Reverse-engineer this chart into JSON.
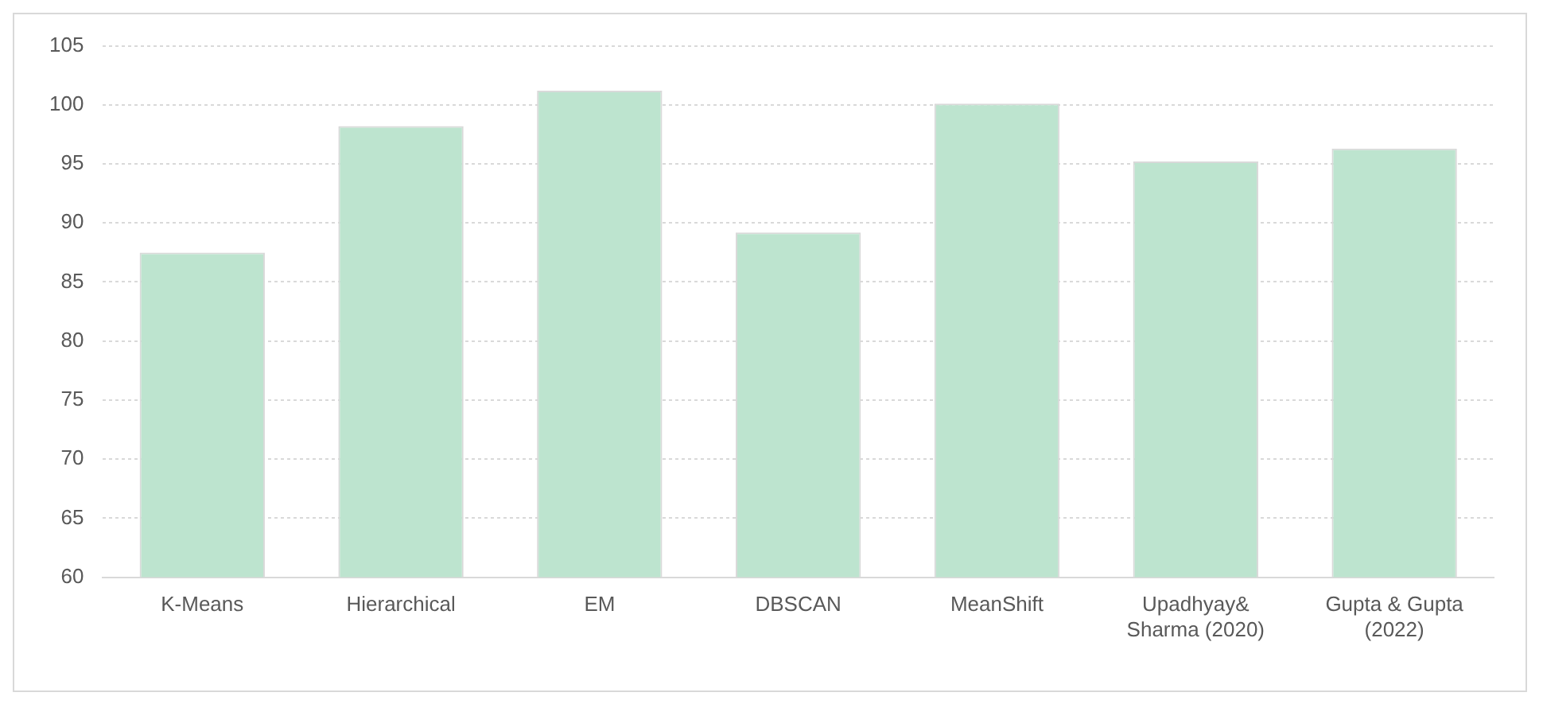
{
  "chart_data": {
    "type": "bar",
    "categories": [
      "K-Means",
      "Hierarchical",
      "EM",
      "DBSCAN",
      "MeanShift",
      "Upadhyay& Sharma (2020)",
      "Gupta & Gupta (2022)"
    ],
    "values": [
      87.5,
      98.2,
      101.2,
      89.2,
      100.1,
      95.2,
      96.3
    ],
    "color": "#bde4cf",
    "ylim": [
      60,
      105
    ],
    "yticks": [
      60,
      65,
      70,
      75,
      80,
      85,
      90,
      95,
      100,
      105
    ],
    "grid": "y",
    "legend": false
  }
}
